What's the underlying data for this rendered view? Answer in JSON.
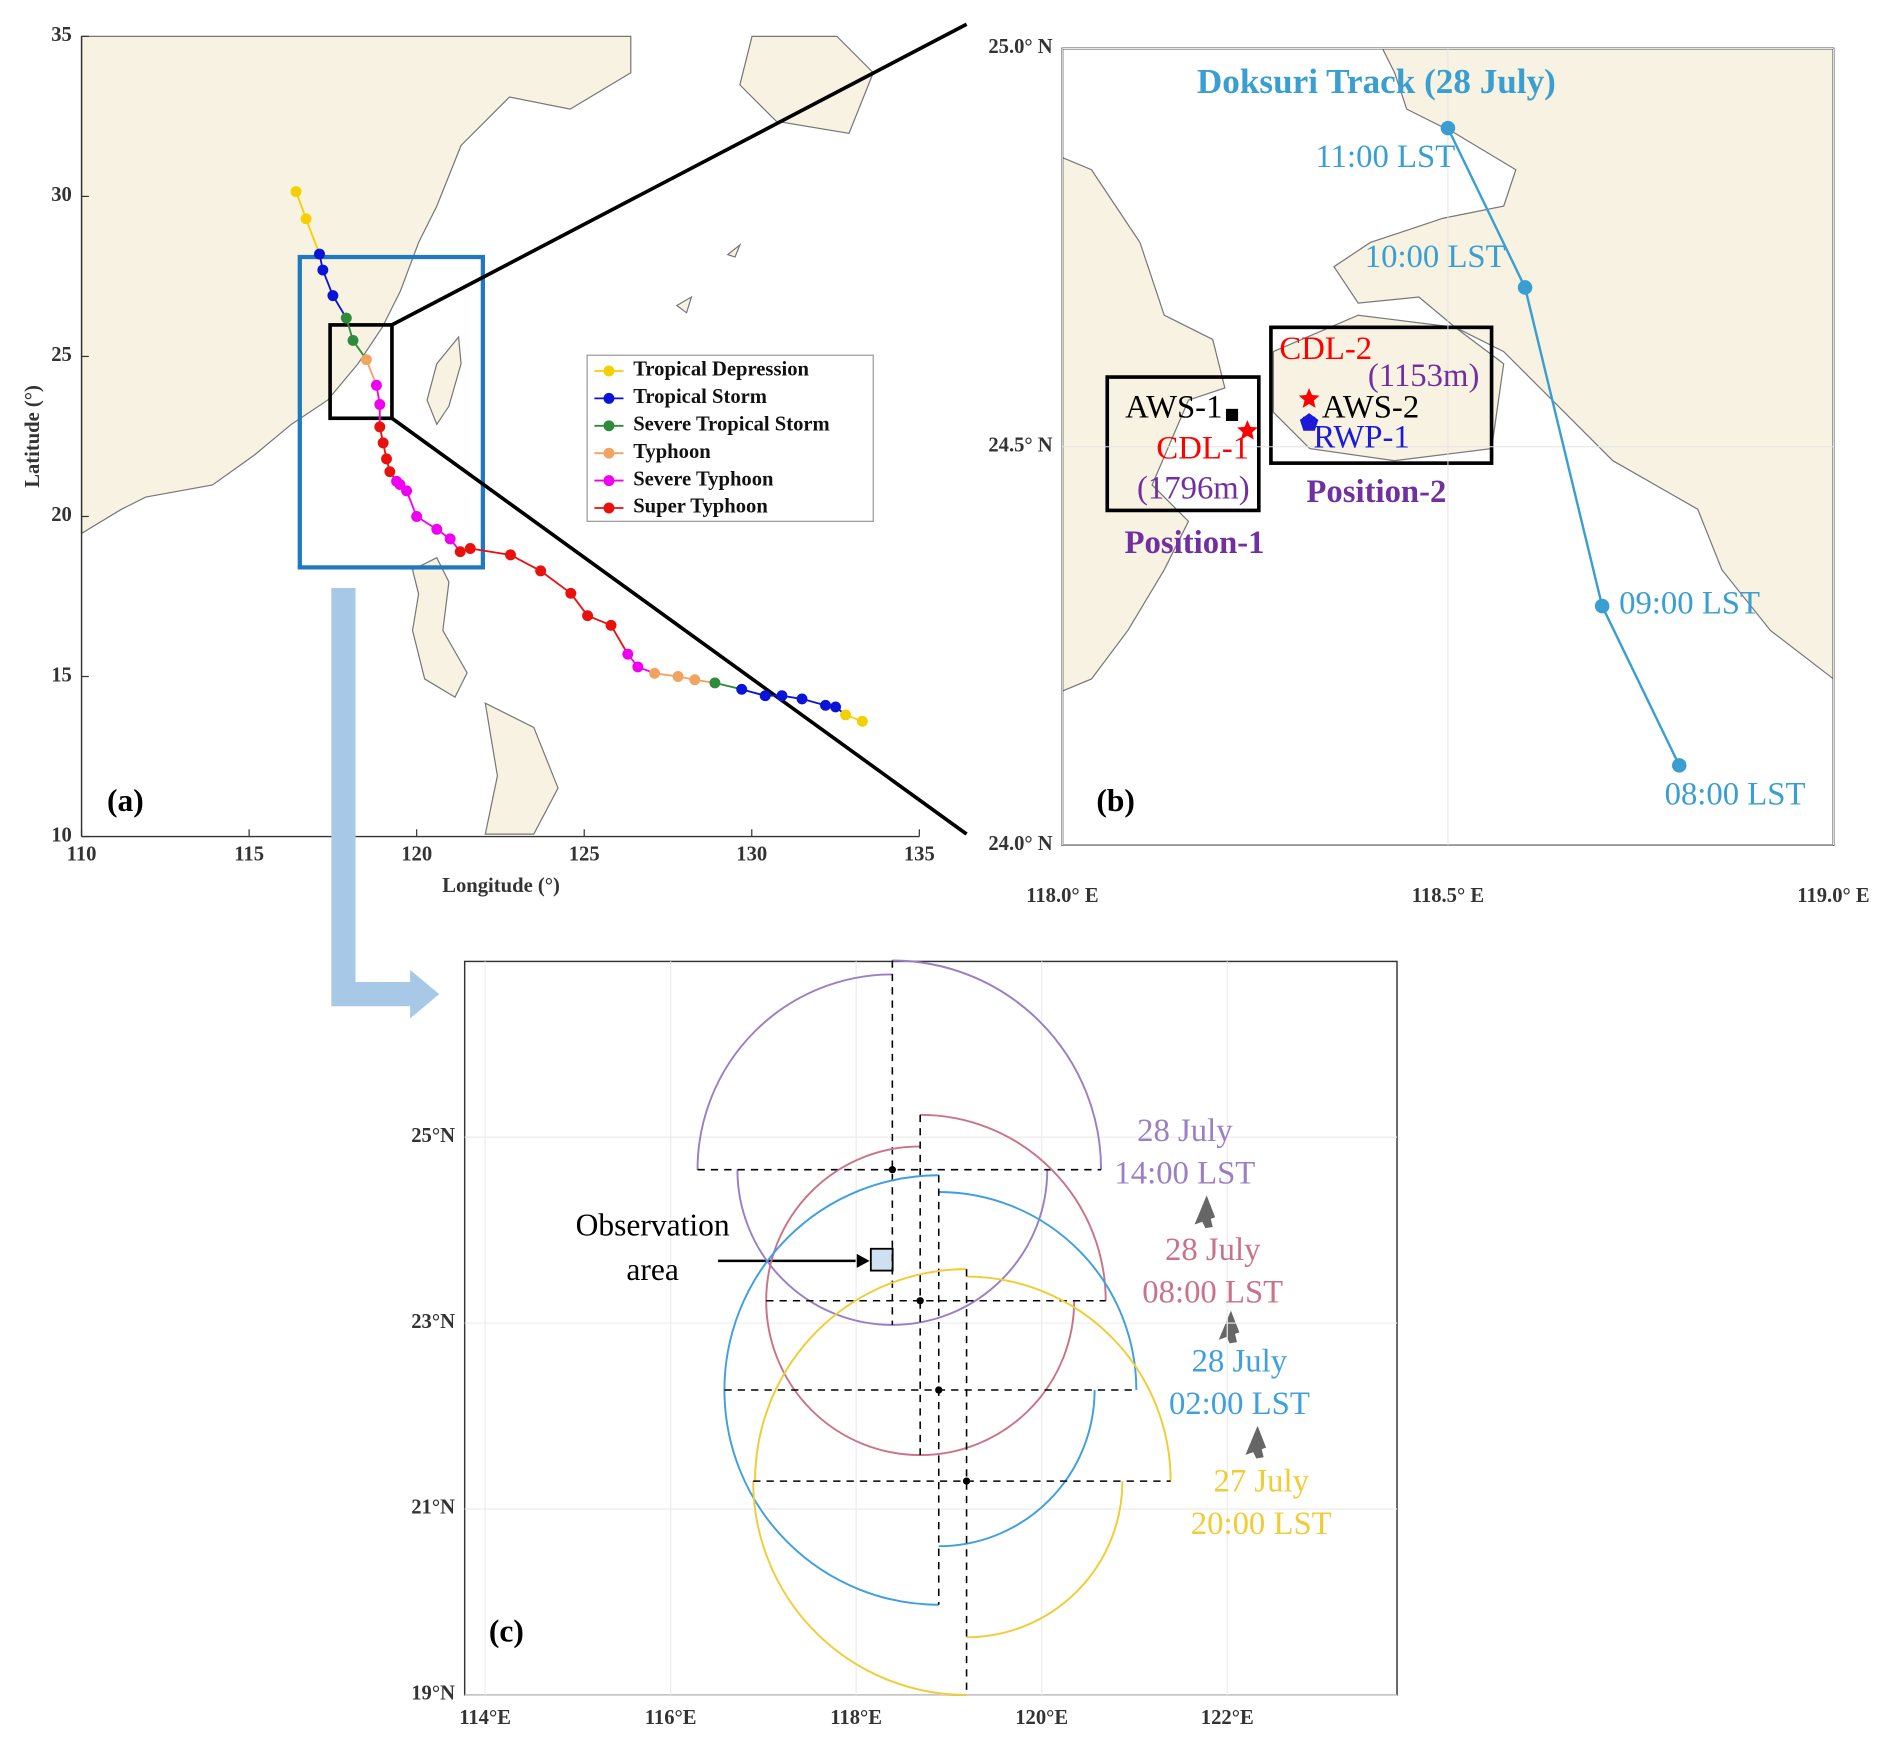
{
  "chart_data": [
    {
      "type": "track",
      "panel_label": "(a)",
      "xlabel": "Longitude (°)",
      "ylabel": "Latitude (°)",
      "xlim": [
        110,
        135
      ],
      "ylim": [
        10,
        35
      ],
      "xticks": [
        110,
        115,
        120,
        125,
        130,
        135
      ],
      "yticks": [
        10,
        15,
        20,
        25,
        30,
        35
      ],
      "legend": [
        {
          "name": "Tropical Depression",
          "color": "#f5d000"
        },
        {
          "name": "Tropical Storm",
          "color": "#0a14d8"
        },
        {
          "name": "Severe Tropical Storm",
          "color": "#2e8b3a"
        },
        {
          "name": "Typhoon",
          "color": "#f2a35f"
        },
        {
          "name": "Severe Typhoon",
          "color": "#f000f0"
        },
        {
          "name": "Super Typhoon",
          "color": "#e8110d"
        }
      ],
      "x": [
        133.3,
        132.8,
        132.5,
        132.2,
        131.5,
        130.9,
        130.4,
        129.7,
        128.9,
        128.3,
        127.8,
        127.1,
        126.6,
        126.3,
        125.8,
        125.1,
        124.6,
        123.7,
        122.8,
        121.6,
        121.3,
        121.0,
        120.6,
        120.0,
        119.7,
        119.5,
        119.4,
        119.2,
        119.1,
        119.0,
        118.9,
        118.9,
        118.8,
        118.5,
        118.1,
        117.9,
        117.5,
        117.2,
        117.1,
        116.7,
        116.4
      ],
      "y": [
        13.6,
        13.8,
        14.05,
        14.1,
        14.3,
        14.4,
        14.4,
        14.6,
        14.8,
        14.9,
        15.0,
        15.1,
        15.3,
        15.7,
        16.6,
        16.9,
        17.6,
        18.3,
        18.8,
        19.0,
        18.9,
        19.3,
        19.6,
        20.0,
        20.8,
        21.0,
        21.1,
        21.4,
        21.8,
        22.3,
        22.8,
        23.5,
        24.1,
        24.9,
        25.5,
        26.2,
        26.9,
        27.7,
        28.2,
        29.3,
        30.15
      ],
      "intensity": [
        0,
        0,
        1,
        1,
        1,
        1,
        1,
        1,
        2,
        3,
        3,
        3,
        4,
        4,
        5,
        5,
        5,
        5,
        5,
        5,
        5,
        4,
        4,
        4,
        4,
        4,
        4,
        5,
        5,
        5,
        5,
        4,
        4,
        3,
        2,
        2,
        1,
        1,
        1,
        0,
        0
      ]
    },
    {
      "type": "track-zoom",
      "panel_label": "(b)",
      "title": "Doksuri Track (28 July)",
      "color": "#3a9fd0",
      "xlim": [
        118,
        119
      ],
      "ylim": [
        24,
        25
      ],
      "xticks": [
        {
          "value": 118,
          "label": "118.0° E"
        },
        {
          "value": 118.5,
          "label": "118.5° E"
        },
        {
          "value": 119,
          "label": "119.0° E"
        }
      ],
      "yticks": [
        {
          "value": 24,
          "label": "24.0° N"
        },
        {
          "value": 24.5,
          "label": "24.5° N"
        },
        {
          "value": 25,
          "label": "25.0° N"
        }
      ],
      "x": [
        118.5,
        118.6,
        118.7,
        118.8
      ],
      "y": [
        24.9,
        24.7,
        24.3,
        24.1
      ],
      "point_labels": [
        "11:00 LST",
        "10:00 LST",
        "09:00 LST",
        "08:00 LST"
      ],
      "stations": [
        {
          "name": "AWS-1",
          "lon": 118.22,
          "lat": 24.54,
          "color": "#000000",
          "marker": "square"
        },
        {
          "name": "CDL-1",
          "lon": 118.24,
          "lat": 24.52,
          "color": "#ff0000",
          "marker": "star",
          "note": "(1796m)"
        },
        {
          "name": "CDL-2",
          "lon": 118.32,
          "lat": 24.56,
          "color": "#ff0000",
          "marker": "star",
          "note": "(1153m)"
        },
        {
          "name": "AWS-2",
          "lon": 118.32,
          "lat": 24.53,
          "color": "#000000",
          "marker": "square"
        },
        {
          "name": "RWP-1",
          "lon": 118.32,
          "lat": 24.53,
          "color": "#1a1ad8",
          "marker": "pentagon"
        }
      ],
      "note_color": "#7030a0",
      "boxes": [
        "Position-1",
        "Position-2"
      ]
    },
    {
      "type": "wind-radii",
      "panel_label": "(c)",
      "xlim": [
        113.78,
        123.83
      ],
      "ylim": [
        19,
        26.89
      ],
      "xticks": [
        {
          "value": 114,
          "label": "114°E"
        },
        {
          "value": 116,
          "label": "116°E"
        },
        {
          "value": 118,
          "label": "118°E"
        },
        {
          "value": 120,
          "label": "120°E"
        },
        {
          "value": 122,
          "label": "122°E"
        }
      ],
      "yticks": [
        {
          "value": 19,
          "label": "19°N"
        },
        {
          "value": 21,
          "label": "21°N"
        },
        {
          "value": 23,
          "label": "23°N"
        },
        {
          "value": 25,
          "label": "25°N"
        }
      ],
      "grid": true,
      "series": [
        {
          "name": "28 July",
          "time": "14:00 LST",
          "color": "#9b7fc4",
          "lon": 118.39,
          "lat": 24.65,
          "radii": [
            2.25,
            1.67,
            1.67,
            2.1
          ]
        },
        {
          "name": "28 July",
          "time": "08:00 LST",
          "color": "#c9738a",
          "lon": 118.69,
          "lat": 23.24,
          "radii": [
            2.0,
            1.66,
            1.66,
            1.66
          ]
        },
        {
          "name": "28 July",
          "time": "02:00 LST",
          "color": "#3f9fdf",
          "lon": 118.89,
          "lat": 22.28,
          "radii": [
            2.13,
            1.68,
            2.31,
            2.31
          ]
        },
        {
          "name": "27 July",
          "time": "20:00 LST",
          "color": "#f0cc35",
          "lon": 119.19,
          "lat": 21.3,
          "radii": [
            2.2,
            1.68,
            2.3,
            2.28
          ]
        }
      ],
      "annotation": [
        "Observation",
        "area"
      ]
    }
  ]
}
